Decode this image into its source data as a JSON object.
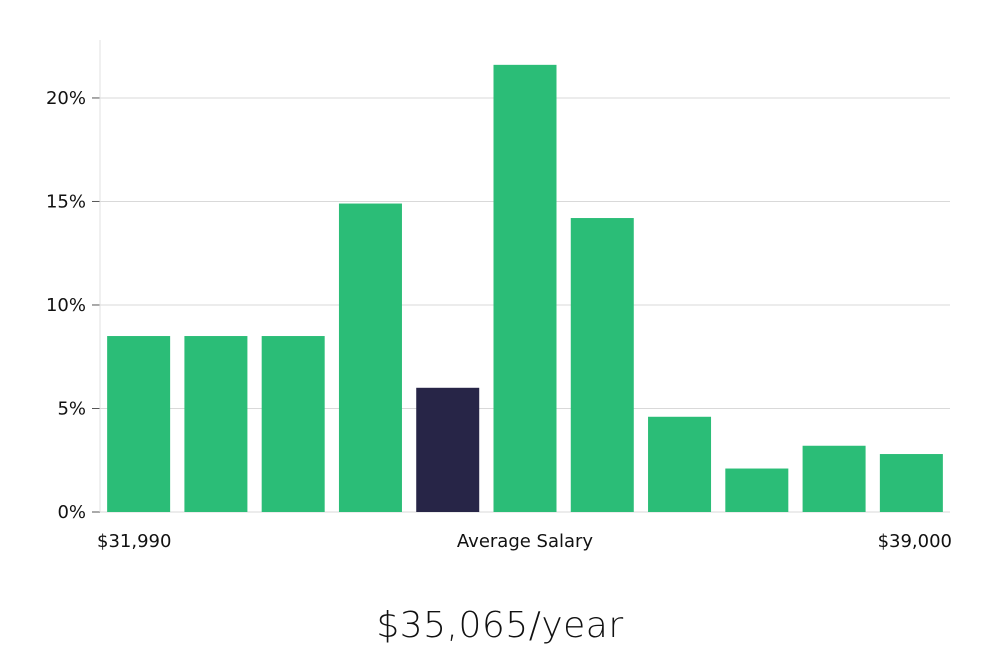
{
  "chart_data": {
    "type": "bar",
    "categories": [
      "1",
      "2",
      "3",
      "4",
      "5",
      "6",
      "7",
      "8",
      "9",
      "10",
      "11"
    ],
    "values": [
      8.5,
      8.5,
      8.5,
      14.9,
      6.0,
      21.6,
      14.2,
      4.6,
      2.1,
      3.2,
      2.8
    ],
    "highlight_index": 4,
    "colors": {
      "bar": "#2bbd77",
      "highlight": "#272547",
      "grid": "#d9d9d9",
      "axis": "#e0e0e0"
    },
    "ylim": [
      0,
      22.8
    ],
    "yticks": [
      0,
      5,
      10,
      15,
      20
    ],
    "ytick_labels": [
      "0%",
      "5%",
      "10%",
      "15%",
      "20%"
    ],
    "grid": true,
    "x_labels": {
      "left": "$31,990",
      "center": "Average Salary",
      "right": "$39,000"
    }
  },
  "summary": {
    "salary_text": "$35,065/year"
  }
}
